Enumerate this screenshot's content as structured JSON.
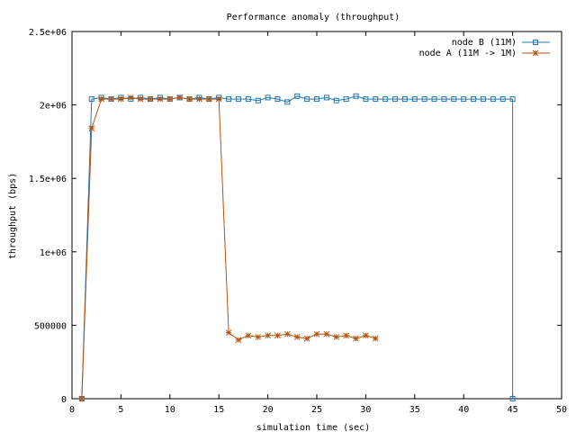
{
  "chart_data": {
    "type": "line",
    "title": "Performance anomaly (throughput)",
    "xlabel": "simulation time (sec)",
    "ylabel": "throughput (bps)",
    "xlim": [
      0,
      50
    ],
    "ylim": [
      0,
      2500000
    ],
    "grid": false,
    "legend_position": "top-right",
    "x_ticks": [
      0,
      5,
      10,
      15,
      20,
      25,
      30,
      35,
      40,
      45,
      50
    ],
    "x_tick_labels": [
      "0",
      "5",
      "10",
      "15",
      "20",
      "25",
      "30",
      "35",
      "40",
      "45",
      "50"
    ],
    "y_ticks": [
      0,
      500000,
      1000000,
      1500000,
      2000000,
      2500000
    ],
    "y_tick_labels": [
      "0",
      "500000",
      "1e+06",
      "1.5e+06",
      "2e+06",
      "2.5e+06"
    ],
    "series": [
      {
        "name": "node B (11M)",
        "color": "#1f77b4",
        "marker": "square",
        "x": [
          1,
          2,
          3,
          4,
          5,
          6,
          7,
          8,
          9,
          10,
          11,
          12,
          13,
          14,
          15,
          16,
          17,
          18,
          19,
          20,
          21,
          22,
          23,
          24,
          25,
          26,
          27,
          28,
          29,
          30,
          31,
          32,
          33,
          34,
          35,
          36,
          37,
          38,
          39,
          40,
          41,
          42,
          43,
          44,
          45,
          45
        ],
        "y": [
          0,
          2040000,
          2050000,
          2040000,
          2050000,
          2040000,
          2050000,
          2040000,
          2050000,
          2040000,
          2050000,
          2040000,
          2050000,
          2040000,
          2050000,
          2040000,
          2040000,
          2040000,
          2030000,
          2050000,
          2040000,
          2020000,
          2060000,
          2040000,
          2040000,
          2050000,
          2030000,
          2040000,
          2060000,
          2040000,
          2040000,
          2040000,
          2040000,
          2040000,
          2040000,
          2040000,
          2040000,
          2040000,
          2040000,
          2040000,
          2040000,
          2040000,
          2040000,
          2040000,
          2040000,
          0
        ]
      },
      {
        "name": "node A (11M -> 1M)",
        "color": "#b5520d",
        "marker": "star",
        "x": [
          1,
          2,
          3,
          4,
          5,
          6,
          7,
          8,
          9,
          10,
          11,
          12,
          13,
          14,
          15,
          16,
          17,
          18,
          19,
          20,
          21,
          22,
          23,
          24,
          25,
          26,
          27,
          28,
          29,
          30,
          31
        ],
        "y": [
          0,
          1840000,
          2040000,
          2040000,
          2040000,
          2050000,
          2040000,
          2040000,
          2040000,
          2040000,
          2050000,
          2040000,
          2040000,
          2040000,
          2040000,
          450000,
          400000,
          430000,
          420000,
          430000,
          430000,
          440000,
          420000,
          410000,
          440000,
          440000,
          420000,
          430000,
          410000,
          430000,
          410000
        ]
      }
    ]
  }
}
